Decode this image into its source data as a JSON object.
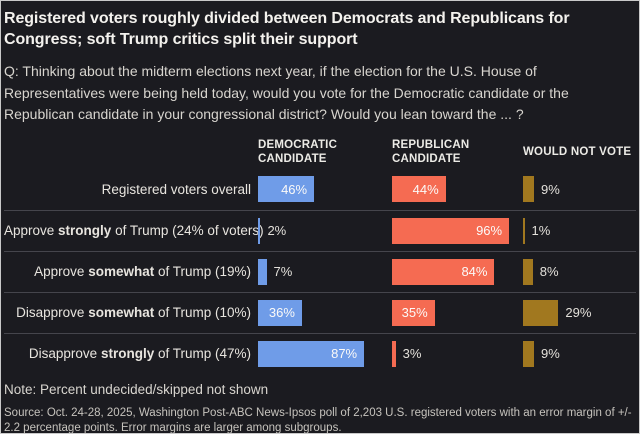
{
  "title": "Registered voters roughly divided between Democrats and Republicans for Congress; soft Trump critics split their support",
  "question": "Q: Thinking about the midterm elections next year, if the election for the U.S. House of Representatives were being held today, would you vote for the Democratic candidate or the Republican candidate in your congressional district? Would you lean toward the ... ?",
  "note": "Note: Percent undecided/skipped not shown",
  "source": "Source: Oct. 24-28, 2025, Washington Post-ABC News-Ipsos poll of 2,203 U.S. registered voters with an error margin of +/- 2.2 percentage points. Error margins are larger among subgroups.",
  "colors": {
    "background": "#1b1b20",
    "democratic_blue": "#6f9ce8",
    "republican_red": "#f56b52",
    "would_not_vote_gold": "#a1781f",
    "divider": "#45454c",
    "title_text": "#f4f2ee",
    "body_text": "#d8d5cf"
  },
  "chart_data": {
    "type": "bar",
    "orientation": "horizontal",
    "value_suffix": "%",
    "axis_max": 100,
    "grid": false,
    "legend_position": "column-headers-top",
    "columns": [
      "DEMOCRATIC CANDIDATE",
      "REPUBLICAN CANDIDATE",
      "WOULD NOT VOTE"
    ],
    "categories": [
      {
        "pre": "Registered voters overall",
        "bold": "",
        "post": ""
      },
      {
        "pre": "Approve ",
        "bold": "strongly",
        "post": " of Trump (24% of voters)"
      },
      {
        "pre": "Approve ",
        "bold": "somewhat",
        "post": " of Trump (19%)"
      },
      {
        "pre": "Disapprove ",
        "bold": "somewhat",
        "post": " of Trump (10%)"
      },
      {
        "pre": "Disapprove ",
        "bold": "strongly",
        "post": " of Trump (47%)"
      }
    ],
    "series": [
      {
        "name": "Democratic candidate",
        "color": "#6f9ce8",
        "values": [
          46,
          2,
          7,
          36,
          87
        ]
      },
      {
        "name": "Republican candidate",
        "color": "#f56b52",
        "values": [
          44,
          96,
          84,
          35,
          3
        ]
      },
      {
        "name": "Would not vote",
        "color": "#a1781f",
        "values": [
          9,
          1,
          8,
          29,
          9
        ]
      }
    ]
  }
}
